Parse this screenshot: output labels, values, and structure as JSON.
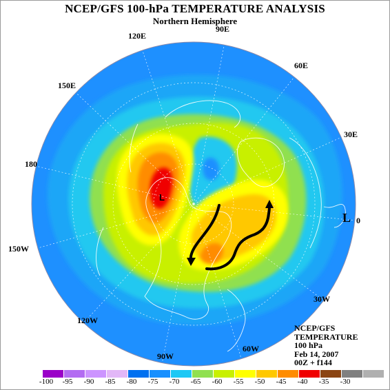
{
  "header": {
    "title": "NCEP/GFS 100-hPa TEMPERATURE ANALYSIS",
    "subtitle": "Northern Hemisphere"
  },
  "map": {
    "longitude_labels": [
      "120E",
      "90E",
      "60E",
      "150E",
      "30E",
      "180",
      "0",
      "150W",
      "30W",
      "120W",
      "90W",
      "60W"
    ],
    "pole_marker": "L",
    "low_marker": "L",
    "colors": {
      "ocean_background": "#1e90ff",
      "coastline": "#ffffff",
      "arrow": "#000000"
    }
  },
  "info_box": {
    "lines": [
      "NCEP/GFS",
      "TEMPERATURE",
      "100 hPa",
      "Feb 14, 2007",
      "00Z + f144"
    ]
  },
  "colorbar": {
    "ticks": [
      "-100",
      "-95",
      "-90",
      "-85",
      "-80",
      "-75",
      "-70",
      "-65",
      "-60",
      "-55",
      "-50",
      "-45",
      "-40",
      "-35",
      "-30"
    ],
    "colors": [
      "#9a00c8",
      "#b36cf2",
      "#cc94ff",
      "#e2b7f7",
      "#0070f0",
      "#1890ff",
      "#1ec8f5",
      "#90e050",
      "#c8f000",
      "#ffff00",
      "#ffc800",
      "#ff8c00",
      "#f00000",
      "#8b4513",
      "#808080",
      "#b0b0b0"
    ]
  }
}
